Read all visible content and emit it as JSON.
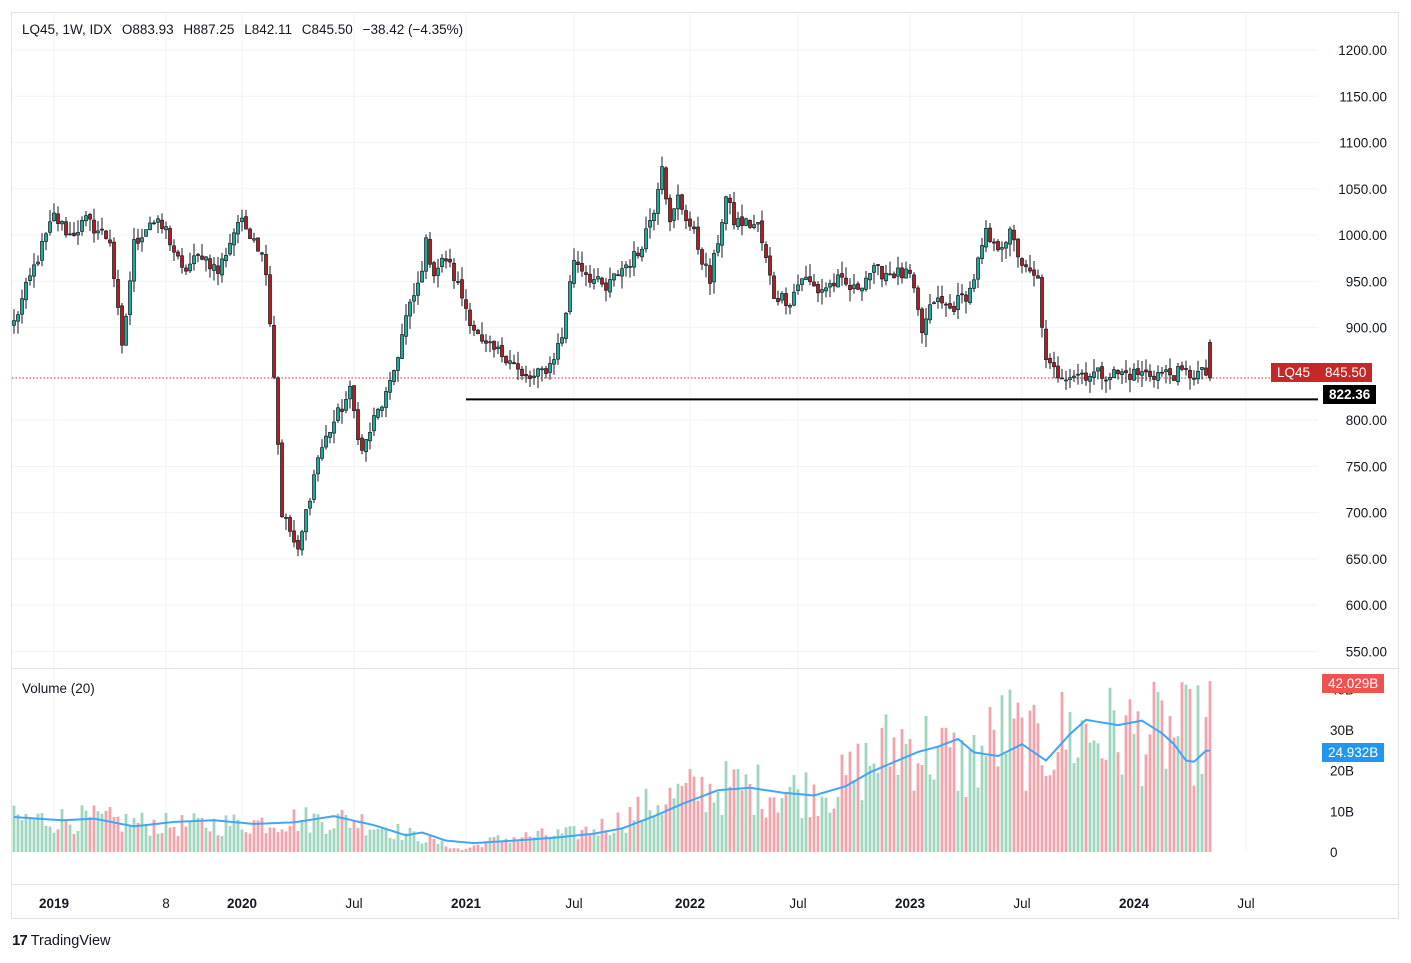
{
  "header": {
    "symbol_info": "LQ45, 1W, IDX",
    "open": "O883.93",
    "high": "H887.25",
    "low": "L842.11",
    "close": "C845.50",
    "change": "−38.42 (−4.35%)"
  },
  "volume_legend": "Volume (20)",
  "tags": {
    "symbol": "LQ45",
    "last_price": "845.50",
    "level": "822.36",
    "last_volume": "42.029B",
    "volume_ma": "24.932B"
  },
  "brand": {
    "logo": "17",
    "name": "TradingView"
  },
  "colors": {
    "up": "#22ab94",
    "down": "#b71c1c",
    "candle_body": "#131722",
    "vol_up": "#9fd6be",
    "vol_down": "#f1a4ab",
    "ma": "#42a5f5",
    "last_price_tag": "#c62828",
    "level_tag": "#000000",
    "volume_tag": "#ef5350",
    "ma_tag": "#2196f3"
  },
  "chart_data": {
    "type": "candlestick",
    "title": "LQ45, 1W, IDX",
    "price_axis": {
      "ticks": [
        "1200.00",
        "1150.00",
        "1100.00",
        "1050.00",
        "1000.00",
        "950.00",
        "900.00",
        "800.00",
        "750.00",
        "700.00",
        "650.00",
        "600.00",
        "550.00"
      ],
      "tick_values": [
        1200,
        1150,
        1100,
        1050,
        1000,
        950,
        900,
        800,
        750,
        700,
        650,
        600,
        550
      ],
      "range": [
        532,
        1240
      ]
    },
    "time_axis": {
      "labels": [
        "2019",
        "8",
        "2020",
        "Jul",
        "2021",
        "Jul",
        "2022",
        "Jul",
        "2023",
        "Jul",
        "2024",
        "Jul"
      ],
      "bold": [
        true,
        false,
        true,
        false,
        true,
        false,
        true,
        false,
        true,
        false,
        true,
        false
      ],
      "index": [
        10,
        38,
        57,
        85,
        113,
        140,
        169,
        196,
        224,
        252,
        280,
        308
      ]
    },
    "horizontal_level": {
      "value": 822.36,
      "from_index": 113
    },
    "last_price": 845.5,
    "volume_axis": {
      "ticks": [
        "40B",
        "30B",
        "20B",
        "10B",
        "0"
      ],
      "tick_values": [
        40,
        30,
        20,
        10,
        0
      ],
      "max": 45
    },
    "weekly_close_anchors": [
      [
        0,
        905
      ],
      [
        5,
        965
      ],
      [
        10,
        1020
      ],
      [
        14,
        1000
      ],
      [
        18,
        1015
      ],
      [
        24,
        995
      ],
      [
        27,
        875
      ],
      [
        30,
        990
      ],
      [
        34,
        1015
      ],
      [
        38,
        1005
      ],
      [
        42,
        960
      ],
      [
        47,
        980
      ],
      [
        51,
        960
      ],
      [
        56,
        1015
      ],
      [
        60,
        1000
      ],
      [
        63,
        965
      ],
      [
        65,
        850
      ],
      [
        67,
        700
      ],
      [
        69,
        680
      ],
      [
        71,
        655
      ],
      [
        73,
        700
      ],
      [
        76,
        760
      ],
      [
        79,
        790
      ],
      [
        84,
        830
      ],
      [
        87,
        765
      ],
      [
        90,
        800
      ],
      [
        94,
        835
      ],
      [
        98,
        910
      ],
      [
        101,
        945
      ],
      [
        103,
        990
      ],
      [
        105,
        960
      ],
      [
        108,
        975
      ],
      [
        111,
        945
      ],
      [
        114,
        910
      ],
      [
        117,
        880
      ],
      [
        120,
        875
      ],
      [
        124,
        868
      ],
      [
        127,
        845
      ],
      [
        130,
        845
      ],
      [
        134,
        860
      ],
      [
        137,
        890
      ],
      [
        140,
        975
      ],
      [
        144,
        955
      ],
      [
        148,
        940
      ],
      [
        151,
        960
      ],
      [
        156,
        980
      ],
      [
        160,
        1030
      ],
      [
        162,
        1080
      ],
      [
        164,
        1010
      ],
      [
        166,
        1040
      ],
      [
        170,
        1000
      ],
      [
        174,
        950
      ],
      [
        178,
        1040
      ],
      [
        180,
        1015
      ],
      [
        186,
        1010
      ],
      [
        190,
        935
      ],
      [
        194,
        930
      ],
      [
        197,
        955
      ],
      [
        201,
        940
      ],
      [
        206,
        950
      ],
      [
        210,
        940
      ],
      [
        214,
        960
      ],
      [
        219,
        960
      ],
      [
        224,
        955
      ],
      [
        227,
        895
      ],
      [
        230,
        930
      ],
      [
        234,
        920
      ],
      [
        239,
        940
      ],
      [
        243,
        1000
      ],
      [
        245,
        985
      ],
      [
        249,
        1000
      ],
      [
        253,
        960
      ],
      [
        256,
        950
      ],
      [
        258,
        860
      ],
      [
        261,
        850
      ]
    ],
    "volume_anchors": [
      [
        0,
        8
      ],
      [
        20,
        8
      ],
      [
        40,
        6.5
      ],
      [
        57,
        7
      ],
      [
        70,
        8
      ],
      [
        85,
        8
      ],
      [
        100,
        4
      ],
      [
        112,
        0.5
      ],
      [
        120,
        3
      ],
      [
        130,
        4
      ],
      [
        140,
        4.5
      ],
      [
        150,
        7
      ],
      [
        160,
        12
      ],
      [
        170,
        15
      ],
      [
        180,
        16
      ],
      [
        190,
        15
      ],
      [
        198,
        15
      ],
      [
        206,
        16
      ],
      [
        215,
        23
      ],
      [
        222,
        27
      ],
      [
        230,
        25
      ],
      [
        238,
        21
      ],
      [
        248,
        30
      ],
      [
        255,
        25
      ],
      [
        262,
        29
      ]
    ],
    "volume_ma_anchors": [
      [
        0,
        8.6
      ],
      [
        12,
        7.8
      ],
      [
        20,
        8.2
      ],
      [
        30,
        6.3
      ],
      [
        40,
        7.4
      ],
      [
        50,
        7.8
      ],
      [
        60,
        6.9
      ],
      [
        70,
        7.3
      ],
      [
        80,
        8.8
      ],
      [
        90,
        6.6
      ],
      [
        98,
        4.1
      ],
      [
        102,
        4.8
      ],
      [
        108,
        2.8
      ],
      [
        115,
        2.2
      ],
      [
        125,
        2.8
      ],
      [
        135,
        3.5
      ],
      [
        145,
        4.5
      ],
      [
        152,
        5.8
      ],
      [
        160,
        8.8
      ],
      [
        168,
        12.2
      ],
      [
        176,
        15.2
      ],
      [
        184,
        15.8
      ],
      [
        192,
        14.6
      ],
      [
        200,
        13.9
      ],
      [
        208,
        16.2
      ],
      [
        214,
        19.6
      ],
      [
        220,
        22.1
      ],
      [
        226,
        24.6
      ],
      [
        231,
        25.9
      ],
      [
        236,
        27.8
      ],
      [
        240,
        24.5
      ],
      [
        246,
        23.6
      ],
      [
        252,
        26.5
      ],
      [
        258,
        22.5
      ],
      [
        264,
        29
      ],
      [
        268,
        32.5
      ],
      [
        276,
        31.2
      ],
      [
        282,
        32.3
      ],
      [
        287,
        29.2
      ],
      [
        290,
        26.5
      ],
      [
        293,
        22.5
      ],
      [
        295,
        22.2
      ],
      [
        298,
        24.9
      ]
    ],
    "series": [
      {
        "name": "LQ45 weekly OHLC",
        "n_weeks": 300,
        "last": {
          "open": 883.93,
          "high": 887.25,
          "low": 842.11,
          "close": 845.5
        }
      },
      {
        "name": "Volume",
        "last": 42.029
      },
      {
        "name": "Volume MA (20)",
        "last": 24.932
      }
    ]
  }
}
